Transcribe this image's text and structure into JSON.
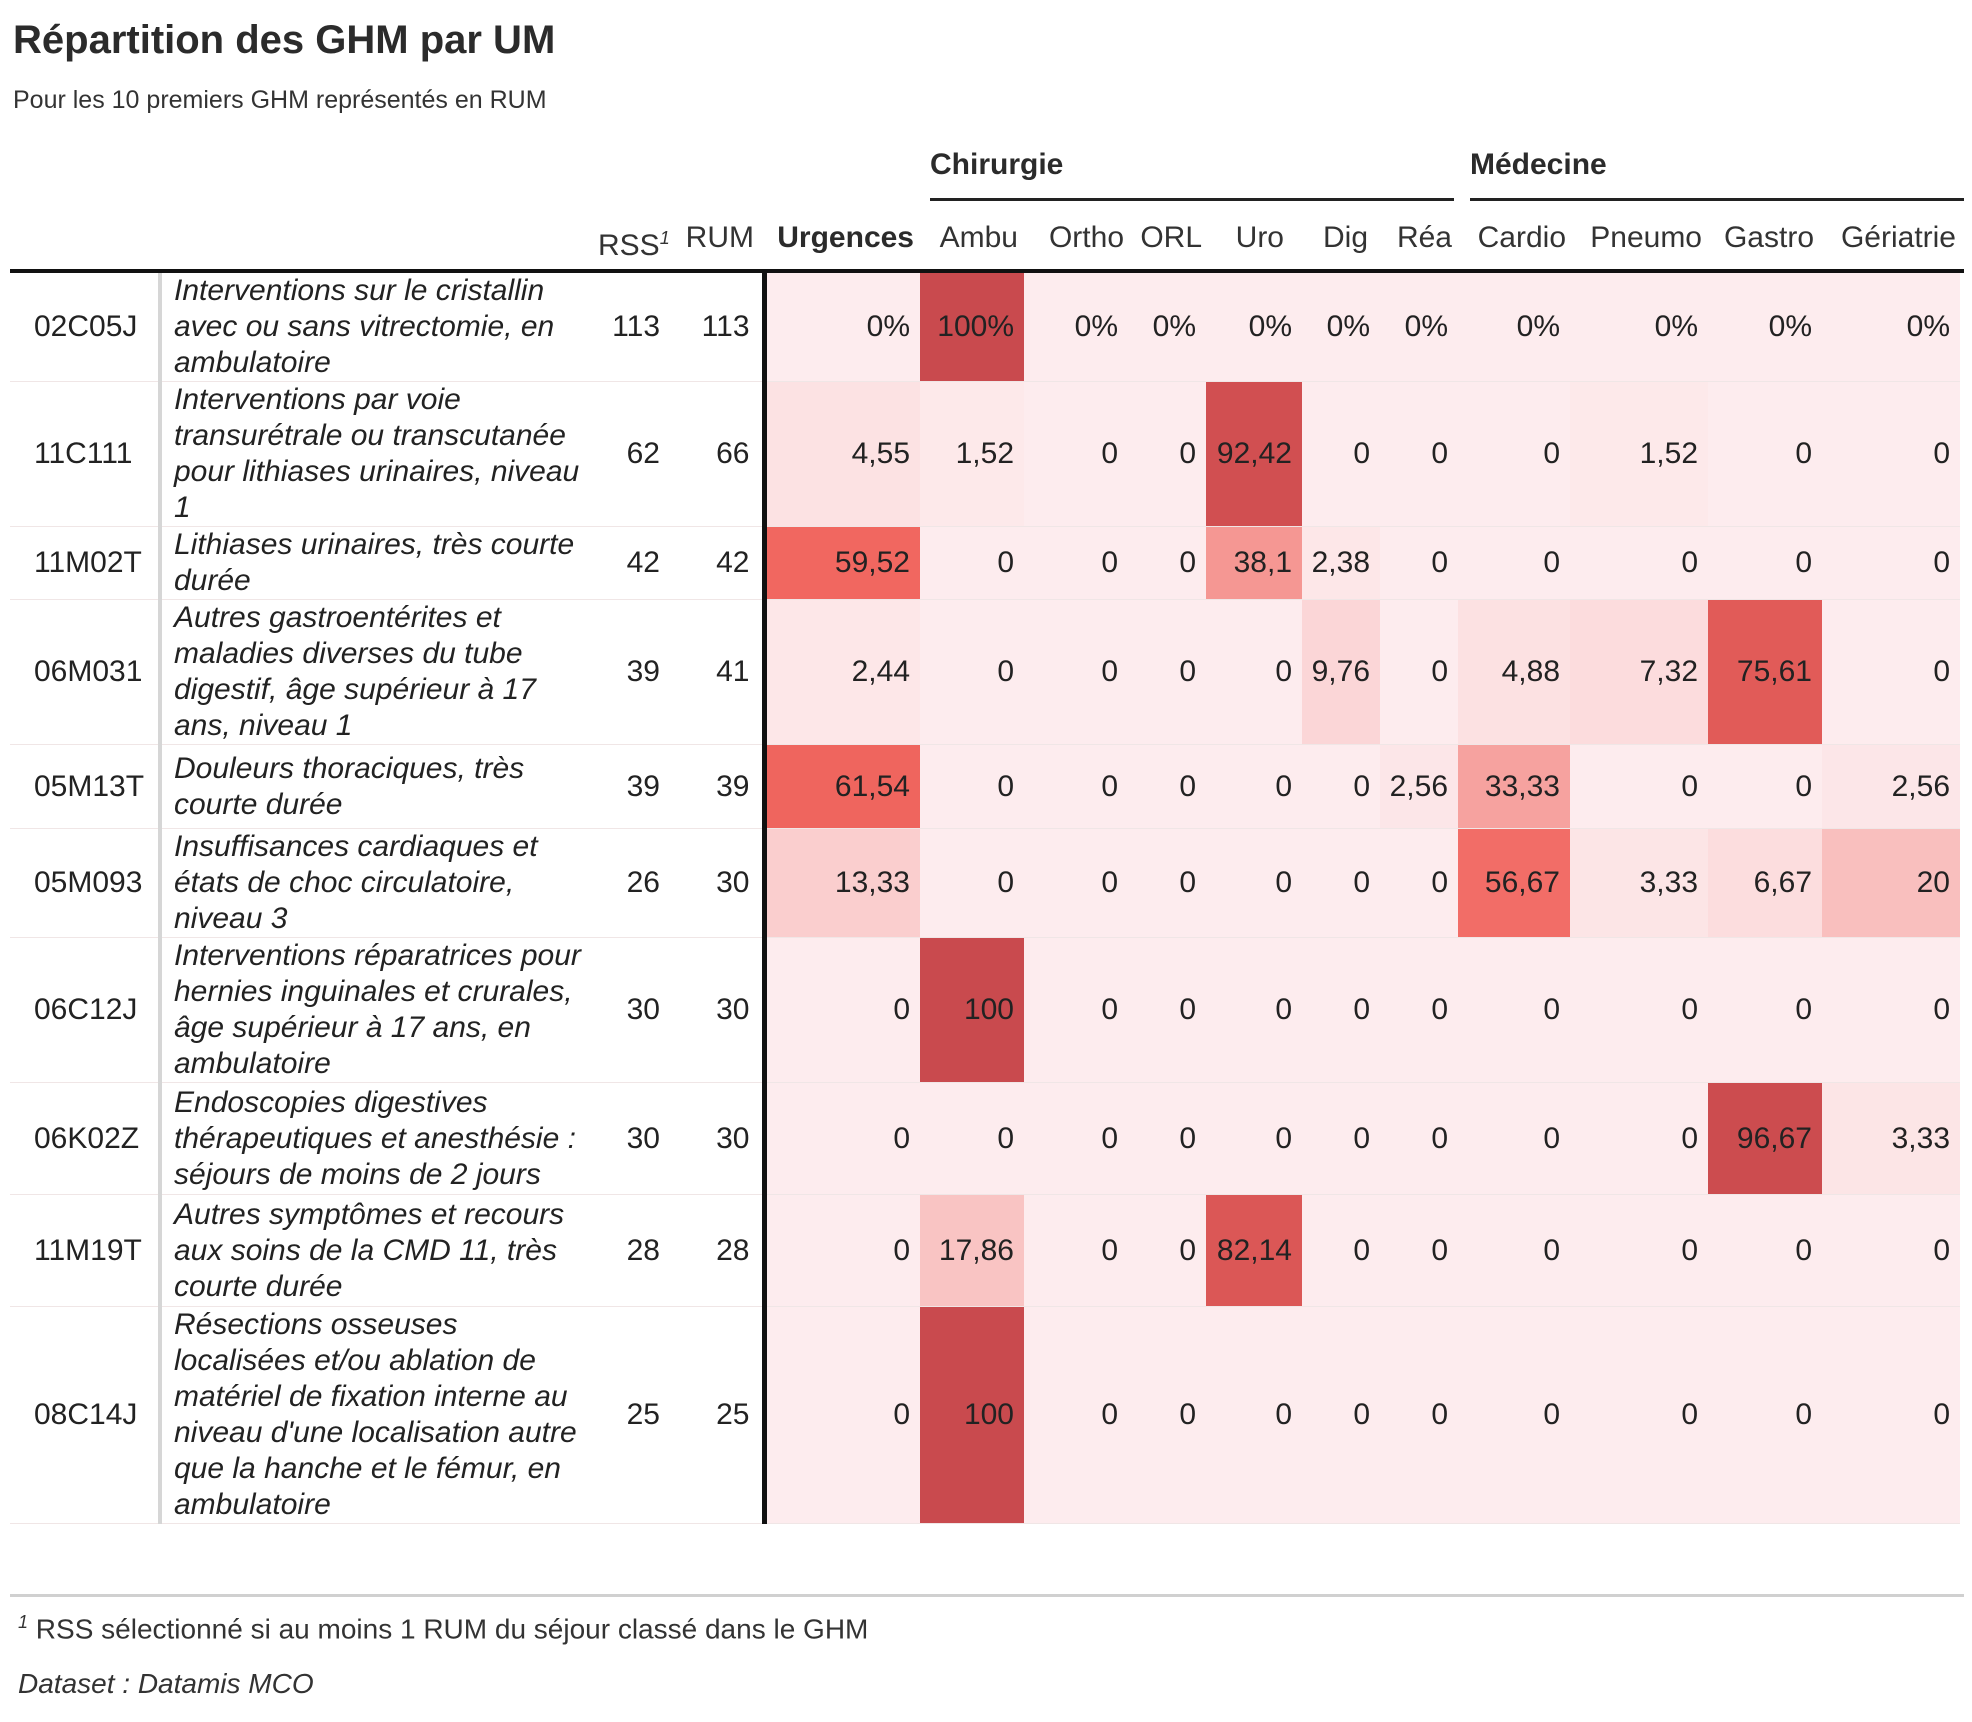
{
  "title": "Répartition des GHM par UM",
  "subtitle": "Pour les 10 premiers GHM représentés en RUM",
  "groups": {
    "chirurgie": "Chirurgie",
    "medecine": "Médecine"
  },
  "columns": {
    "rss": "RSS",
    "rss_note": "1",
    "rum": "RUM",
    "units": [
      "Urgences",
      "Ambu",
      "Ortho",
      "ORL",
      "Uro",
      "Dig",
      "Réa",
      "Cardio",
      "Pneumo",
      "Gastro",
      "Gériatrie"
    ]
  },
  "rows": [
    {
      "code": "02C05J",
      "label": "Interventions sur le cristallin avec ou sans vitrectomie, en ambulatoire",
      "rss": "113",
      "rum": "113",
      "display": [
        "0%",
        "100%",
        "0%",
        "0%",
        "0%",
        "0%",
        "0%",
        "0%",
        "0%",
        "0%",
        "0%"
      ],
      "values": [
        0,
        100,
        0,
        0,
        0,
        0,
        0,
        0,
        0,
        0,
        0
      ]
    },
    {
      "code": "11C111",
      "label": "Interventions par voie transurétrale ou transcutanée pour lithiases urinaires, niveau 1",
      "rss": "62",
      "rum": "66",
      "display": [
        "4,55",
        "1,52",
        "0",
        "0",
        "92,42",
        "0",
        "0",
        "0",
        "1,52",
        "0",
        "0"
      ],
      "values": [
        4.55,
        1.52,
        0,
        0,
        92.42,
        0,
        0,
        0,
        1.52,
        0,
        0
      ]
    },
    {
      "code": "11M02T",
      "label": "Lithiases urinaires, très courte durée",
      "rss": "42",
      "rum": "42",
      "display": [
        "59,52",
        "0",
        "0",
        "0",
        "38,1",
        "2,38",
        "0",
        "0",
        "0",
        "0",
        "0"
      ],
      "values": [
        59.52,
        0,
        0,
        0,
        38.1,
        2.38,
        0,
        0,
        0,
        0,
        0
      ]
    },
    {
      "code": "06M031",
      "label": "Autres gastroentérites et maladies diverses du tube digestif, âge supérieur à 17 ans, niveau 1",
      "rss": "39",
      "rum": "41",
      "display": [
        "2,44",
        "0",
        "0",
        "0",
        "0",
        "9,76",
        "0",
        "4,88",
        "7,32",
        "75,61",
        "0"
      ],
      "values": [
        2.44,
        0,
        0,
        0,
        0,
        9.76,
        0,
        4.88,
        7.32,
        75.61,
        0
      ]
    },
    {
      "code": "05M13T",
      "label": "Douleurs thoraciques, très courte durée",
      "rss": "39",
      "rum": "39",
      "display": [
        "61,54",
        "0",
        "0",
        "0",
        "0",
        "0",
        "2,56",
        "33,33",
        "0",
        "0",
        "2,56"
      ],
      "values": [
        61.54,
        0,
        0,
        0,
        0,
        0,
        2.56,
        33.33,
        0,
        0,
        2.56
      ]
    },
    {
      "code": "05M093",
      "label": "Insuffisances cardiaques et états de choc circulatoire, niveau 3",
      "rss": "26",
      "rum": "30",
      "display": [
        "13,33",
        "0",
        "0",
        "0",
        "0",
        "0",
        "0",
        "56,67",
        "3,33",
        "6,67",
        "20"
      ],
      "values": [
        13.33,
        0,
        0,
        0,
        0,
        0,
        0,
        56.67,
        3.33,
        6.67,
        20
      ]
    },
    {
      "code": "06C12J",
      "label": "Interventions réparatrices pour hernies inguinales et crurales, âge supérieur à 17 ans, en ambulatoire",
      "rss": "30",
      "rum": "30",
      "display": [
        "0",
        "100",
        "0",
        "0",
        "0",
        "0",
        "0",
        "0",
        "0",
        "0",
        "0"
      ],
      "values": [
        0,
        100,
        0,
        0,
        0,
        0,
        0,
        0,
        0,
        0,
        0
      ]
    },
    {
      "code": "06K02Z",
      "label": "Endoscopies digestives thérapeutiques et anesthésie : séjours de moins de 2 jours",
      "rss": "30",
      "rum": "30",
      "display": [
        "0",
        "0",
        "0",
        "0",
        "0",
        "0",
        "0",
        "0",
        "0",
        "96,67",
        "3,33"
      ],
      "values": [
        0,
        0,
        0,
        0,
        0,
        0,
        0,
        0,
        0,
        96.67,
        3.33
      ]
    },
    {
      "code": "11M19T",
      "label": "Autres symptômes et recours aux soins de la CMD 11, très courte durée",
      "rss": "28",
      "rum": "28",
      "display": [
        "0",
        "17,86",
        "0",
        "0",
        "82,14",
        "0",
        "0",
        "0",
        "0",
        "0",
        "0"
      ],
      "values": [
        0,
        17.86,
        0,
        0,
        82.14,
        0,
        0,
        0,
        0,
        0,
        0
      ]
    },
    {
      "code": "08C14J",
      "label": "Résections osseuses localisées et/ou ablation de matériel de fixation interne au niveau d'une localisation autre que la hanche et le fémur, en ambulatoire",
      "rss": "25",
      "rum": "25",
      "display": [
        "0",
        "100",
        "0",
        "0",
        "0",
        "0",
        "0",
        "0",
        "0",
        "0",
        "0"
      ],
      "values": [
        0,
        100,
        0,
        0,
        0,
        0,
        0,
        0,
        0,
        0,
        0
      ]
    }
  ],
  "footnote_mark": "1",
  "footnote_text": "RSS sélectionné si au moins 1 RUM du séjour classé dans le GHM",
  "source": "Dataset : Datamis MCO",
  "colors": {
    "low": "#fdecee",
    "mid": "#f1665f",
    "high": "#c94a4e"
  }
}
